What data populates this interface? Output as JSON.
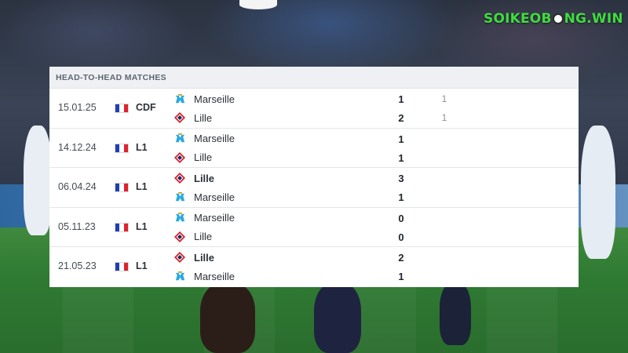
{
  "brand": {
    "text_left": "SOIKEOB",
    "text_right": "NG.WIN",
    "color": "#3fdc3f"
  },
  "panel": {
    "title": "HEAD-TO-HEAD MATCHES"
  },
  "matches": [
    {
      "date": "15.01.25",
      "competition": "CDF",
      "country_flag": "france-flag",
      "home": {
        "name": "Marseille",
        "crest": "marseille-crest",
        "bold": false,
        "score": "1",
        "extra": "1"
      },
      "away": {
        "name": "Lille",
        "crest": "lille-crest",
        "bold": false,
        "score": "2",
        "extra": "1"
      }
    },
    {
      "date": "14.12.24",
      "competition": "L1",
      "country_flag": "france-flag",
      "home": {
        "name": "Marseille",
        "crest": "marseille-crest",
        "bold": false,
        "score": "1",
        "extra": ""
      },
      "away": {
        "name": "Lille",
        "crest": "lille-crest",
        "bold": false,
        "score": "1",
        "extra": ""
      }
    },
    {
      "date": "06.04.24",
      "competition": "L1",
      "country_flag": "france-flag",
      "home": {
        "name": "Lille",
        "crest": "lille-crest",
        "bold": true,
        "score": "3",
        "extra": ""
      },
      "away": {
        "name": "Marseille",
        "crest": "marseille-crest",
        "bold": false,
        "score": "1",
        "extra": ""
      }
    },
    {
      "date": "05.11.23",
      "competition": "L1",
      "country_flag": "france-flag",
      "home": {
        "name": "Marseille",
        "crest": "marseille-crest",
        "bold": false,
        "score": "0",
        "extra": ""
      },
      "away": {
        "name": "Lille",
        "crest": "lille-crest",
        "bold": false,
        "score": "0",
        "extra": ""
      }
    },
    {
      "date": "21.05.23",
      "competition": "L1",
      "country_flag": "france-flag",
      "home": {
        "name": "Lille",
        "crest": "lille-crest",
        "bold": true,
        "score": "2",
        "extra": ""
      },
      "away": {
        "name": "Marseille",
        "crest": "marseille-crest",
        "bold": false,
        "score": "1",
        "extra": ""
      }
    }
  ]
}
